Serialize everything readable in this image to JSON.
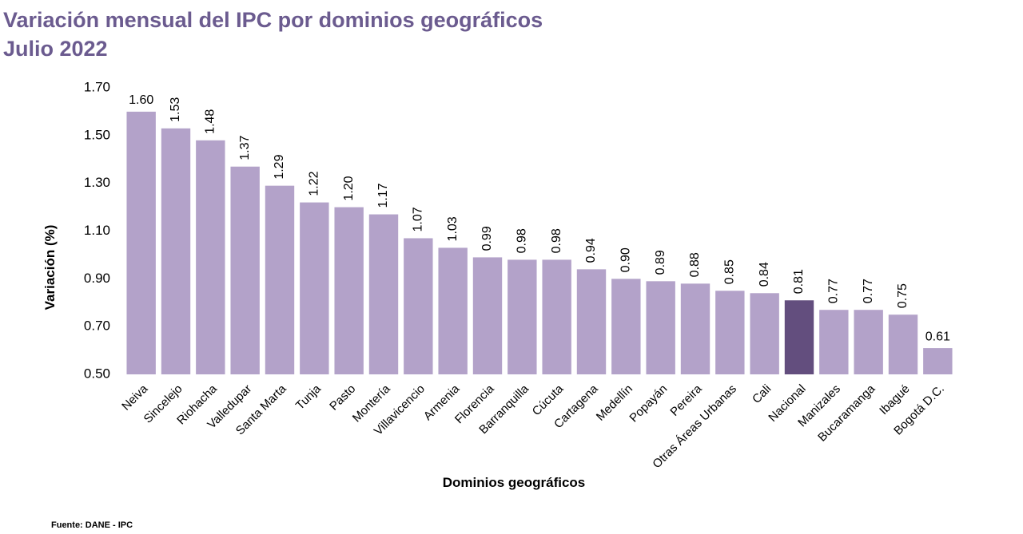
{
  "chart_data": {
    "type": "bar",
    "title": "Variación mensual del IPC por dominios geográficos",
    "subtitle": "Julio 2022",
    "y_label": "Variación (%)",
    "x_label": "Dominios geográficos",
    "source": "Fuente: DANE - IPC",
    "categories": [
      "Neiva",
      "Sincelejo",
      "Riohacha",
      "Valledupar",
      "Santa Marta",
      "Tunja",
      "Pasto",
      "Montería",
      "Villavicencio",
      "Armenia",
      "Florencia",
      "Barranquilla",
      "Cúcuta",
      "Cartagena",
      "Medellín",
      "Popayán",
      "Pereira",
      "Otras Áreas Urbanas",
      "Cali",
      "Nacional",
      "Manizales",
      "Bucaramanga",
      "Ibagué",
      "Bogotá D.C."
    ],
    "values": [
      1.6,
      1.53,
      1.48,
      1.37,
      1.29,
      1.22,
      1.2,
      1.17,
      1.07,
      1.03,
      0.99,
      0.98,
      0.98,
      0.94,
      0.9,
      0.89,
      0.88,
      0.85,
      0.84,
      0.81,
      0.77,
      0.77,
      0.75,
      0.61
    ],
    "value_labels": [
      "1.60",
      "1.53",
      "1.48",
      "1.37",
      "1.29",
      "1.22",
      "1.20",
      "1.17",
      "1.07",
      "1.03",
      "0.99",
      "0.98",
      "0.98",
      "0.94",
      "0.90",
      "0.89",
      "0.88",
      "0.85",
      "0.84",
      "0.81",
      "0.77",
      "0.77",
      "0.75",
      "0.61"
    ],
    "colors": [
      "#b3a2c9",
      "#b3a2c9",
      "#b3a2c9",
      "#b3a2c9",
      "#b3a2c9",
      "#b3a2c9",
      "#b3a2c9",
      "#b3a2c9",
      "#b3a2c9",
      "#b3a2c9",
      "#b3a2c9",
      "#b3a2c9",
      "#b3a2c9",
      "#b3a2c9",
      "#b3a2c9",
      "#b3a2c9",
      "#b3a2c9",
      "#b3a2c9",
      "#b3a2c9",
      "#634e7e",
      "#b3a2c9",
      "#b3a2c9",
      "#b3a2c9",
      "#b3a2c9"
    ],
    "ylim": [
      0.5,
      1.7
    ],
    "yticks": [
      {
        "value": 0.5,
        "label": "0.50"
      },
      {
        "value": 0.7,
        "label": "0.70"
      },
      {
        "value": 0.9,
        "label": "0.90"
      },
      {
        "value": 1.1,
        "label": "1.10"
      },
      {
        "value": 1.3,
        "label": "1.30"
      },
      {
        "value": 1.5,
        "label": "1.50"
      },
      {
        "value": 1.7,
        "label": "1.70"
      }
    ],
    "grid": false
  }
}
